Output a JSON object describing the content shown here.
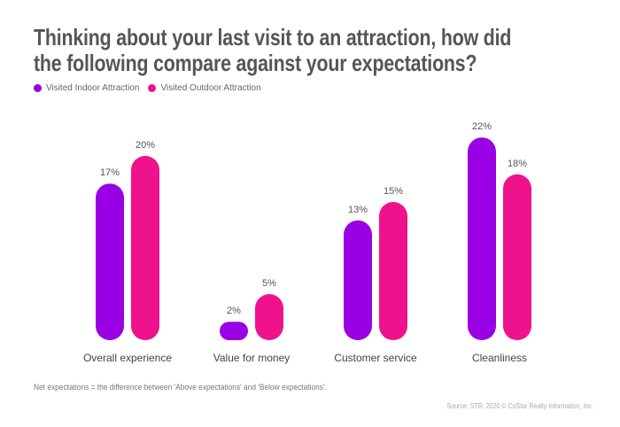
{
  "chart_data": {
    "type": "bar",
    "title": "Thinking about your last visit to an attraction, how did the following compare against your expectations?",
    "title_lines": [
      "Thinking about your last visit to an attraction, how did",
      "the following compare against your expectations?"
    ],
    "categories": [
      "Overall experience",
      "Value for money",
      "Customer service",
      "Cleanliness"
    ],
    "series": [
      {
        "name": "Visited Indoor Attraction",
        "values": [
          17,
          2,
          13,
          22
        ],
        "color": "#9a00e4"
      },
      {
        "name": "Visited Outdoor Attraction",
        "values": [
          20,
          5,
          15,
          18
        ],
        "color": "#f0128c"
      }
    ],
    "value_suffix": "%",
    "ylim": [
      0,
      25
    ],
    "grid": false,
    "legend_position": "top-left",
    "xlabel": "",
    "ylabel": ""
  },
  "note": "Net expectations = the difference between 'Above expectations' and 'Below expectations'.",
  "source": "Source: STR. 2020 © CoStar Realty Information, Inc."
}
